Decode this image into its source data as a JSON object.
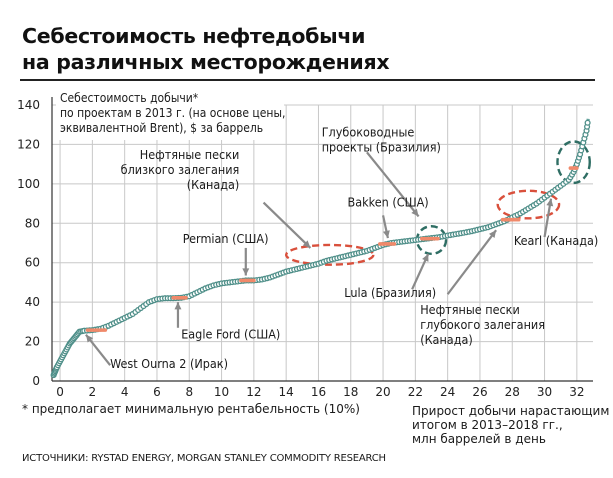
{
  "title_line1": "Себестоимость нефтедобычи",
  "title_line2": "на различных месторождениях",
  "footnote": "* предполагает минимальную рентабельность (10%)",
  "sources": "ИСТОЧНИКИ: RYSTAD ENERGY, MORGAN STANLEY COMMODITY RESEARCH",
  "colors": {
    "curve": "#6aa7a1",
    "highlight": "#f0896a",
    "oval_red": "#d9503c",
    "oval_teal": "#2f6e64",
    "grid": "#c8c8c8"
  },
  "chart_data": {
    "type": "line",
    "ylabel": [
      "Себестоимость добычи*",
      "по проектам в 2013 г. (на основе цены,",
      "эквивалентной Brent), $ за баррель"
    ],
    "xlabel": [
      "Прирост добычи нарастающим",
      "итогом в 2013–2018 гг.,",
      "млн баррелей в день"
    ],
    "xlim": [
      -0.5,
      33
    ],
    "ylim": [
      0,
      140
    ],
    "xticks": [
      0,
      2,
      4,
      6,
      8,
      10,
      12,
      14,
      16,
      18,
      20,
      22,
      24,
      26,
      28,
      30,
      32
    ],
    "yticks": [
      0,
      20,
      40,
      60,
      80,
      100,
      120,
      140
    ],
    "grid": true,
    "series": [
      {
        "x": [
          -0.4,
          -0.3,
          -0.2,
          0.0,
          0.2,
          0.4,
          0.6,
          0.8,
          1.0,
          1.2,
          1.5,
          2.0,
          2.5,
          3.0,
          3.5,
          4.0,
          4.5,
          5.0,
          5.5,
          6.0,
          6.5,
          7.0,
          7.5,
          8.0,
          8.5,
          9.0,
          9.5,
          10.0,
          10.5,
          11.0,
          11.5,
          12.0,
          12.5,
          13.0,
          13.5,
          14.0,
          14.5,
          15.0,
          15.5,
          16.0,
          16.5,
          17.0,
          17.5,
          18.0,
          18.5,
          19.0,
          19.5,
          20.0,
          20.5,
          21.0,
          21.5,
          22.0,
          22.5,
          23.0,
          23.5,
          24.0,
          24.5,
          25.0,
          25.5,
          26.0,
          26.5,
          27.0,
          27.5,
          28.0,
          28.5,
          29.0,
          29.5,
          30.0,
          30.5,
          31.0,
          31.5,
          31.8,
          32.0,
          32.2,
          32.4,
          32.6,
          32.7
        ],
        "y": [
          3,
          5,
          7,
          10,
          13,
          16,
          19,
          21,
          23,
          25,
          25.5,
          25.8,
          26.5,
          28,
          30,
          32,
          34,
          37,
          40,
          41.5,
          42,
          42,
          42.2,
          43,
          45,
          47,
          48.5,
          49.5,
          50,
          50.5,
          51,
          51,
          51.5,
          52.5,
          54,
          55.5,
          56.5,
          57.5,
          58.5,
          59.5,
          61,
          62,
          63,
          64,
          65,
          66,
          67.5,
          69,
          70,
          70.5,
          71,
          71.5,
          72,
          72.5,
          73,
          73.8,
          74.5,
          75.2,
          76,
          77,
          78,
          79.5,
          81,
          83,
          85,
          87.5,
          90,
          93,
          96,
          99,
          102,
          106,
          110,
          115,
          121,
          127,
          133
        ],
        "markers": true
      }
    ],
    "highlights": [
      {
        "x0": 1.7,
        "x1": 2.8,
        "y": 25.8
      },
      {
        "x0": 7.0,
        "x1": 7.8,
        "y": 42.2
      },
      {
        "x0": 11.2,
        "x1": 12.0,
        "y": 51.0
      },
      {
        "x0": 19.8,
        "x1": 20.7,
        "y": 69.5
      },
      {
        "x0": 22.4,
        "x1": 23.4,
        "y": 72.2
      },
      {
        "x0": 27.4,
        "x1": 28.4,
        "y": 81.8
      },
      {
        "x0": 31.6,
        "x1": 32.0,
        "y": 108
      }
    ],
    "ovals": [
      {
        "cx": 16.7,
        "cy": 64.0,
        "rx": 2.7,
        "ry": 5.0,
        "color": "red"
      },
      {
        "cx": 23.0,
        "cy": 71.5,
        "rx": 0.9,
        "ry": 7.0,
        "color": "teal"
      },
      {
        "cx": 29.0,
        "cy": 89.5,
        "rx": 1.9,
        "ry": 7.0,
        "color": "red"
      },
      {
        "cx": 31.8,
        "cy": 111.0,
        "rx": 1.0,
        "ry": 10.5,
        "color": "teal"
      }
    ],
    "annotations": [
      {
        "lines": [
          "West Ourna 2 (Ирак)"
        ],
        "anchor": "start",
        "tx": 3.1,
        "ty": 6.5,
        "ax": 1.6,
        "ay": 23.5,
        "lx": 3.1,
        "ly": 8.0
      },
      {
        "lines": [
          "Eagle Ford (США)"
        ],
        "anchor": "start",
        "tx": 7.5,
        "ty": 21.5,
        "ax": 7.3,
        "ay": 40.0,
        "lx": 7.3,
        "ly": 27.0
      },
      {
        "lines": [
          "Permian (США)"
        ],
        "anchor": "start",
        "tx": 7.6,
        "ty": 70.0,
        "ax": 11.5,
        "ay": 53.5,
        "lx": 11.5,
        "ly": 67.5
      },
      {
        "lines": [
          "Нефтяные пески",
          "близкого залегания",
          "(Канада)"
        ],
        "anchor": "end",
        "tx": 11.1,
        "ty": 112.5,
        "ax": 15.5,
        "ay": 67.5,
        "lx": 12.6,
        "ly": 90.5
      },
      {
        "lines": [
          "Bakken (США)"
        ],
        "anchor": "start",
        "tx": 17.8,
        "ty": 88.5,
        "ax": 20.3,
        "ay": 72.5,
        "lx": 20.0,
        "ly": 84.0
      },
      {
        "lines": [
          "Глубоководные",
          "проекты (Бразилия)"
        ],
        "anchor": "start",
        "tx": 16.2,
        "ty": 124.0,
        "ax": 22.2,
        "ay": 83.5,
        "lx": 19.0,
        "ly": 116.0
      },
      {
        "lines": [
          "Lula (Бразилия)"
        ],
        "anchor": "start",
        "tx": 17.6,
        "ty": 42.5,
        "ax": 22.8,
        "ay": 64.5,
        "lx": 21.8,
        "ly": 46.5
      },
      {
        "lines": [
          "Нефтяные пески",
          "глубокого залегания",
          "(Канада)"
        ],
        "anchor": "start",
        "tx": 22.3,
        "ty": 34.0,
        "ax": 27.0,
        "ay": 76.5,
        "lx": 24.0,
        "ly": 44.0
      },
      {
        "lines": [
          "Kearl (Канада)"
        ],
        "anchor": "start",
        "tx": 28.1,
        "ty": 69.0,
        "ax": 30.4,
        "ay": 92.5,
        "lx": 30.0,
        "ly": 73.0
      }
    ]
  }
}
